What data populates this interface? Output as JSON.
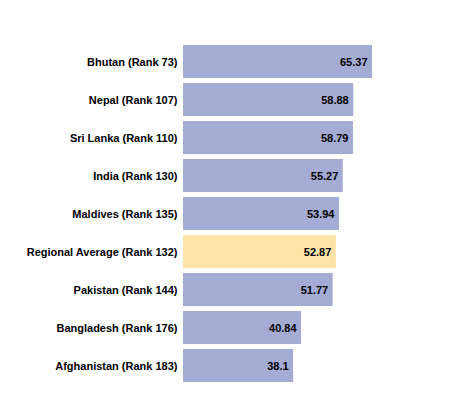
{
  "chart_data": {
    "type": "bar",
    "orientation": "horizontal",
    "categories": [
      "Bhutan (Rank 73)",
      "Nepal (Rank 107)",
      "Sri Lanka (Rank 110)",
      "India (Rank 130)",
      "Maldives (Rank 135)",
      "Regional Average (Rank 132)",
      "Pakistan (Rank 144)",
      "Bangladesh (Rank 176)",
      "Afghanistan (Rank 183)"
    ],
    "values": [
      65.37,
      58.88,
      58.79,
      55.27,
      53.94,
      52.87,
      51.77,
      40.84,
      38.1
    ],
    "colors": [
      "#a4acd4",
      "#a4acd4",
      "#a4acd4",
      "#a4acd4",
      "#a4acd4",
      "#fde3a7",
      "#a4acd4",
      "#a4acd4",
      "#a4acd4"
    ],
    "data_labels": true,
    "tick_labels": "y",
    "grid": false
  }
}
